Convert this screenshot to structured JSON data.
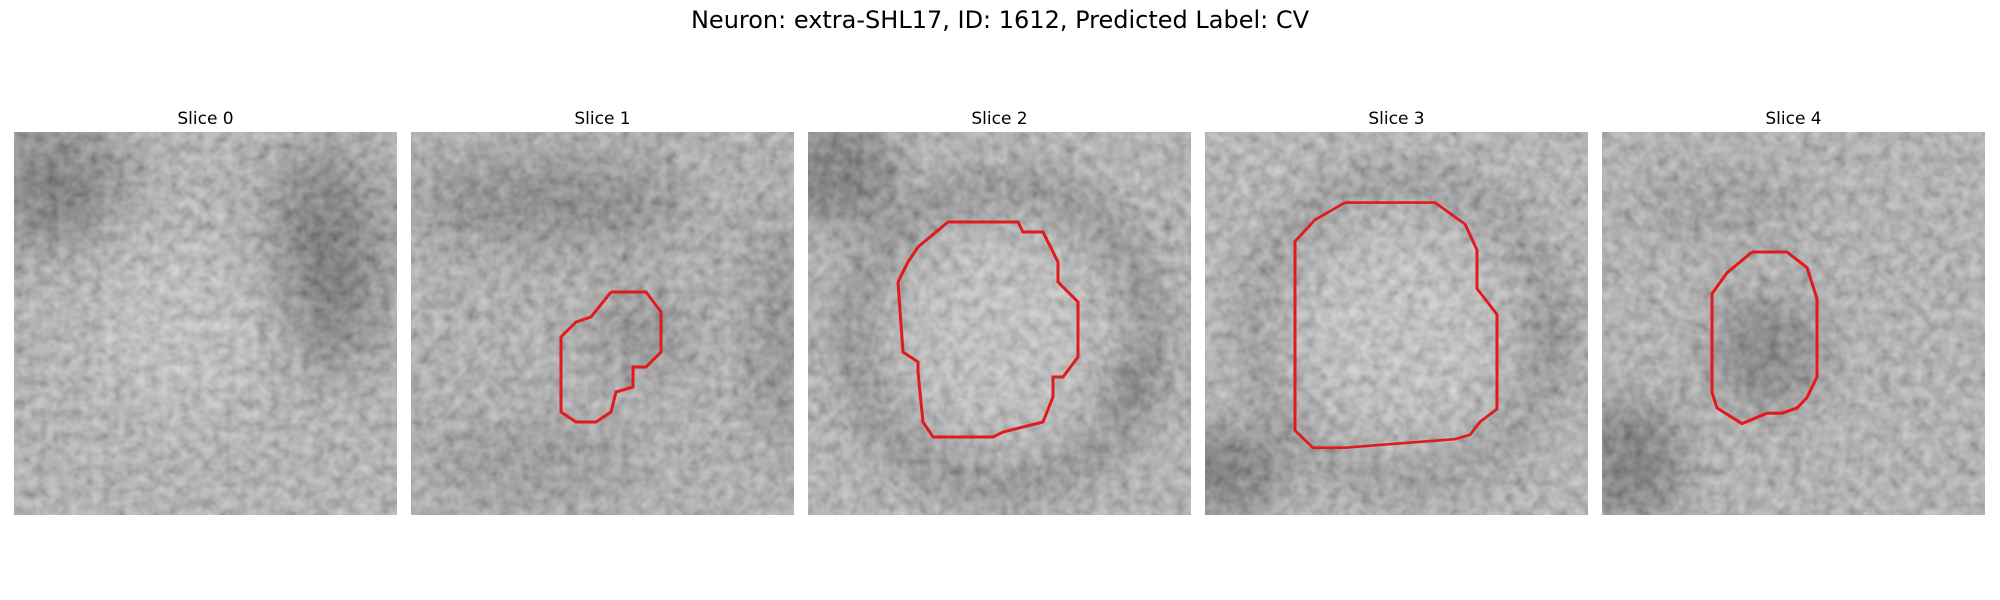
{
  "figure": {
    "title": "Neuron: extra-SHL17, ID: 1612, Predicted Label: CV"
  },
  "panels": [
    {
      "label": "Slice 0",
      "has_outline": false,
      "dark_regions": [
        "top-left",
        "right-center"
      ]
    },
    {
      "label": "Slice 1",
      "has_outline": true,
      "outline_color": "#e31a1c"
    },
    {
      "label": "Slice 2",
      "has_outline": true,
      "outline_color": "#e31a1c"
    },
    {
      "label": "Slice 3",
      "has_outline": true,
      "outline_color": "#e31a1c"
    },
    {
      "label": "Slice 4",
      "has_outline": true,
      "outline_color": "#e31a1c"
    }
  ]
}
